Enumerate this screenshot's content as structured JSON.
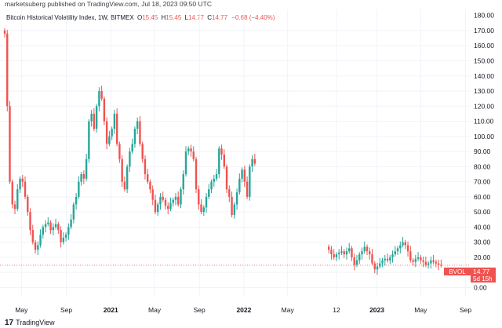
{
  "header": {
    "publisher_line": "marketsuberg published on TradingView.com, Jul 18, 2023 09:50 UTC"
  },
  "legend": {
    "symbol": "Bitcoin Historical Volatility Index, 1W, BITMEX",
    "o_label": "O",
    "o_value": "15.45",
    "h_label": "H",
    "h_value": "15.45",
    "l_label": "L",
    "l_value": "14.77",
    "c_label": "C",
    "c_value": "14.77",
    "change": "−0.68 (−4.40%)"
  },
  "footer": {
    "brand": "TradingView"
  },
  "colors": {
    "up": "#26a69a",
    "down": "#ef5350",
    "grid": "#f0f3fa",
    "axis_text": "#131722",
    "price_line": "#ef5350"
  },
  "price_label": {
    "symbol": "BVOL",
    "value": "14.77",
    "countdown": "5d 15h"
  },
  "chart_data": {
    "type": "candlestick",
    "title": "Bitcoin Historical Volatility Index, 1W, BITMEX",
    "ylim": [
      -6,
      184
    ],
    "y_ticks": [
      "0.00",
      "10.00",
      "20.00",
      "30.00",
      "40.00",
      "50.00",
      "60.00",
      "70.00",
      "80.00",
      "90.00",
      "100.00",
      "110.00",
      "120.00",
      "130.00",
      "140.00",
      "150.00",
      "160.00",
      "170.00"
    ],
    "y_top_partial": "180.00",
    "x_range": [
      "2020-03-16",
      "2023-09-15"
    ],
    "x_ticks": [
      {
        "label": "May",
        "date": "2020-05-01",
        "bold": false
      },
      {
        "label": "Sep",
        "date": "2020-09-01",
        "bold": false
      },
      {
        "label": "2021",
        "date": "2021-01-01",
        "bold": true
      },
      {
        "label": "May",
        "date": "2021-05-01",
        "bold": false
      },
      {
        "label": "Sep",
        "date": "2021-09-01",
        "bold": false
      },
      {
        "label": "2022",
        "date": "2022-01-01",
        "bold": true
      },
      {
        "label": "May",
        "date": "2022-05-01",
        "bold": false
      },
      {
        "label": "12",
        "date": "2022-09-12",
        "bold": false
      },
      {
        "label": "2023",
        "date": "2023-01-01",
        "bold": true
      },
      {
        "label": "May",
        "date": "2023-05-01",
        "bold": false
      },
      {
        "label": "Sep",
        "date": "2023-09-01",
        "bold": false
      }
    ],
    "last_value": 14.77,
    "segments": [
      {
        "start_date": "2020-03-16",
        "closes": [
          168,
          120,
          70,
          55,
          52,
          65,
          72,
          70,
          60,
          50,
          38,
          30,
          25,
          28,
          35,
          40,
          42,
          43,
          38,
          40,
          42,
          38,
          30,
          33,
          35,
          40,
          45,
          55,
          60,
          70,
          75,
          72,
          85,
          110,
          115,
          105,
          120,
          130,
          125,
          110,
          95,
          100,
          105,
          115,
          95,
          85,
          70,
          65,
          80,
          90,
          95,
          105,
          110,
          95,
          85,
          75,
          70,
          65,
          58,
          50,
          55,
          60,
          58,
          54,
          52,
          56,
          58,
          60,
          55,
          65,
          75,
          90,
          92,
          90,
          85,
          65,
          55,
          50,
          53,
          60,
          65,
          70,
          72,
          75,
          92,
          88,
          80,
          65,
          60,
          48,
          55,
          63,
          72,
          78,
          70,
          60,
          80,
          85,
          82
        ]
      },
      {
        "start_date": "2022-08-22",
        "closes": [
          25,
          22,
          20,
          22,
          23,
          24,
          22,
          24,
          26,
          20,
          15,
          18,
          22,
          24,
          27,
          24,
          22,
          16,
          12,
          14,
          16,
          18,
          19,
          18,
          20,
          22,
          24,
          26,
          28,
          30,
          28,
          24,
          18,
          17,
          19,
          20,
          18,
          17,
          15,
          16,
          18,
          17,
          16,
          15,
          14.77
        ]
      }
    ]
  }
}
